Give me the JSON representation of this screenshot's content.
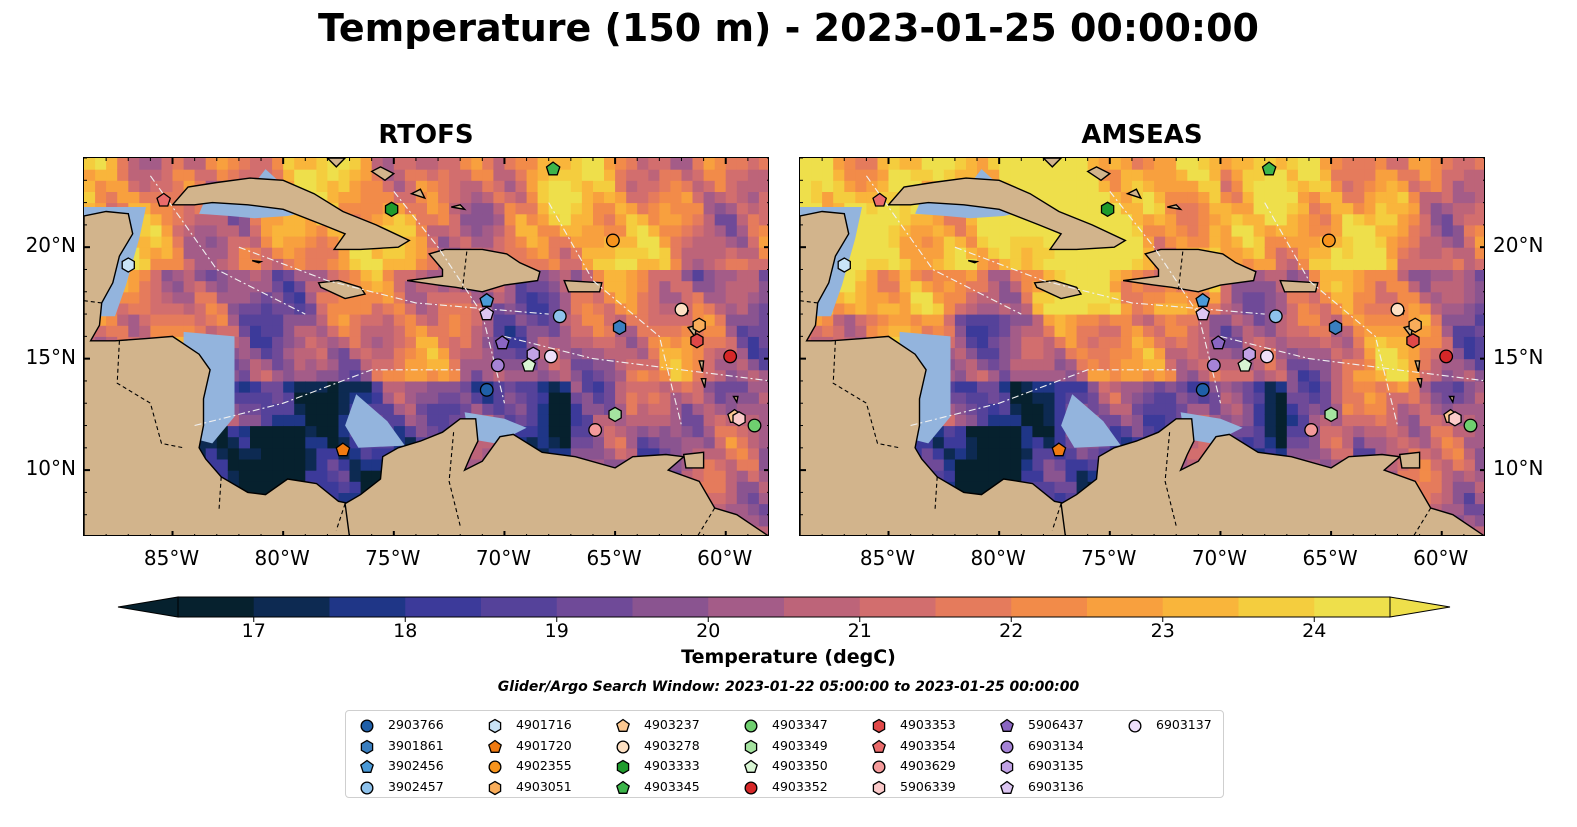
{
  "title": "Temperature (150 m) - 2023-01-25 00:00:00",
  "panels": [
    {
      "title": "RTOFS"
    },
    {
      "title": "AMSEAS"
    }
  ],
  "axes": {
    "lon_labels": [
      "85°W",
      "80°W",
      "75°W",
      "70°W",
      "65°W",
      "60°W"
    ],
    "lat_labels": [
      "20°N",
      "15°N",
      "10°N"
    ]
  },
  "colorbar": {
    "title": "Temperature (degC)",
    "ticks": [
      "17",
      "18",
      "19",
      "20",
      "21",
      "22",
      "23",
      "24"
    ],
    "range": [
      16.5,
      24.5
    ],
    "colors": [
      "#06212e",
      "#0d2a52",
      "#1f3687",
      "#3c3a9a",
      "#55429a",
      "#6f4a98",
      "#8a5490",
      "#a45c88",
      "#bd6479",
      "#d26e6e",
      "#e57b5c",
      "#f28b49",
      "#f8a03e",
      "#f9b53b",
      "#f4cd3e",
      "#eedf4b"
    ]
  },
  "search_window": "Glider/Argo Search Window: 2023-01-22 05:00:00 to 2023-01-25 00:00:00",
  "legend": [
    {
      "label": "2903766",
      "marker": "circle",
      "color": "#1f5fa8"
    },
    {
      "label": "3901861",
      "marker": "hexagon",
      "color": "#3a7fc0"
    },
    {
      "label": "3902456",
      "marker": "pentagon",
      "color": "#4a9ad8"
    },
    {
      "label": "3902457",
      "marker": "circle",
      "color": "#8ec2ec"
    },
    {
      "label": "4901716",
      "marker": "hexagon",
      "color": "#c9e4f7"
    },
    {
      "label": "4901720",
      "marker": "pentagon",
      "color": "#f07a10"
    },
    {
      "label": "4902355",
      "marker": "circle",
      "color": "#f7941d"
    },
    {
      "label": "4903051",
      "marker": "hexagon",
      "color": "#f9ad5a"
    },
    {
      "label": "4903237",
      "marker": "pentagon",
      "color": "#fcc891"
    },
    {
      "label": "4903278",
      "marker": "circle",
      "color": "#fde0c3"
    },
    {
      "label": "4903333",
      "marker": "hexagon",
      "color": "#1f9b2c"
    },
    {
      "label": "4903345",
      "marker": "pentagon",
      "color": "#3cb54a"
    },
    {
      "label": "4903347",
      "marker": "circle",
      "color": "#6fcf6f"
    },
    {
      "label": "4903349",
      "marker": "hexagon",
      "color": "#a5e3a0"
    },
    {
      "label": "4903350",
      "marker": "pentagon",
      "color": "#d8f5d3"
    },
    {
      "label": "4903352",
      "marker": "circle",
      "color": "#d62728"
    },
    {
      "label": "4903353",
      "marker": "hexagon",
      "color": "#e04848"
    },
    {
      "label": "4903354",
      "marker": "pentagon",
      "color": "#ea6b6b"
    },
    {
      "label": "4903629",
      "marker": "circle",
      "color": "#f49a9a"
    },
    {
      "label": "5906339",
      "marker": "hexagon",
      "color": "#fbcaca"
    },
    {
      "label": "5906437",
      "marker": "pentagon",
      "color": "#8a66c2"
    },
    {
      "label": "6903134",
      "marker": "circle",
      "color": "#a583d6"
    },
    {
      "label": "6903135",
      "marker": "hexagon",
      "color": "#c2a3e6"
    },
    {
      "label": "6903136",
      "marker": "pentagon",
      "color": "#dcc6f2"
    },
    {
      "label": "6903137",
      "marker": "circle",
      "color": "#eedffa"
    }
  ],
  "floats": [
    {
      "id": "2903766",
      "lon": -70.8,
      "lat": 13.6
    },
    {
      "id": "3901861",
      "lon": -64.8,
      "lat": 16.4
    },
    {
      "id": "3902456",
      "lon": -70.8,
      "lat": 17.6
    },
    {
      "id": "3902457",
      "lon": -67.5,
      "lat": 16.9
    },
    {
      "id": "4901716",
      "lon": -87.0,
      "lat": 19.2
    },
    {
      "id": "4901720",
      "lon": -77.3,
      "lat": 10.9
    },
    {
      "id": "4902355",
      "lon": -65.1,
      "lat": 20.3
    },
    {
      "id": "4903051",
      "lon": -61.2,
      "lat": 16.5
    },
    {
      "id": "4903237",
      "lon": -59.6,
      "lat": 12.4
    },
    {
      "id": "4903278",
      "lon": -62.0,
      "lat": 17.2
    },
    {
      "id": "4903333",
      "lon": -75.1,
      "lat": 21.7
    },
    {
      "id": "4903345",
      "lon": -67.8,
      "lat": 23.5
    },
    {
      "id": "4903347",
      "lon": -58.7,
      "lat": 12.0
    },
    {
      "id": "4903349",
      "lon": -65.0,
      "lat": 12.5
    },
    {
      "id": "4903350",
      "lon": -68.9,
      "lat": 14.7
    },
    {
      "id": "4903352",
      "lon": -59.8,
      "lat": 15.1
    },
    {
      "id": "4903353",
      "lon": -61.3,
      "lat": 15.8
    },
    {
      "id": "4903354",
      "lon": -85.4,
      "lat": 22.1
    },
    {
      "id": "4903629",
      "lon": -65.9,
      "lat": 11.8
    },
    {
      "id": "5906339",
      "lon": -59.4,
      "lat": 12.3
    },
    {
      "id": "5906437",
      "lon": -70.1,
      "lat": 15.7
    },
    {
      "id": "6903134",
      "lon": -70.3,
      "lat": 14.7
    },
    {
      "id": "6903135",
      "lon": -68.7,
      "lat": 15.2
    },
    {
      "id": "6903136",
      "lon": -70.8,
      "lat": 17.0
    },
    {
      "id": "6903137",
      "lon": -67.9,
      "lat": 15.1
    }
  ]
}
